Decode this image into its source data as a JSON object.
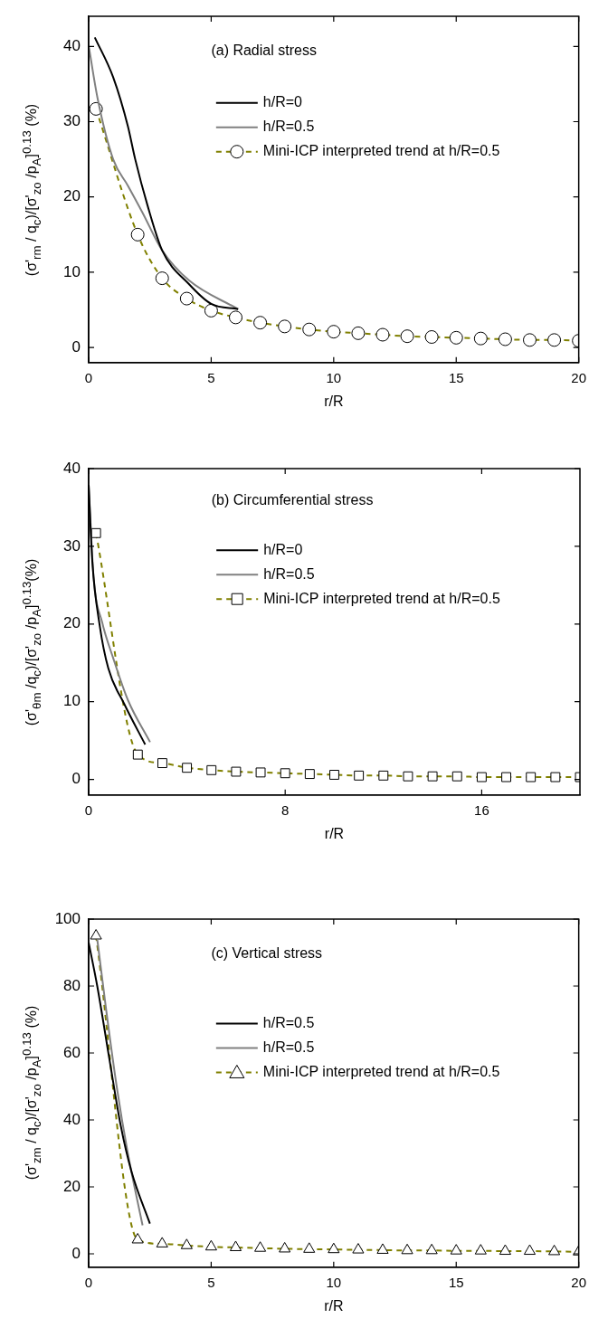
{
  "chart_data": [
    {
      "type": "line",
      "annotations": [
        "(a) Radial stress"
      ],
      "xlabel": "r/R",
      "ylabel": "(σ'$_{rm}$ / q$_{c}$)/[σ'$_{zo}$ /p$_{A}$]$^{0.13}$ (%)",
      "xlim": [
        0,
        20
      ],
      "ylim": [
        -2,
        44
      ],
      "xticks": [
        0,
        5,
        10,
        15,
        20
      ],
      "yticks": [
        0,
        10,
        20,
        30,
        40
      ],
      "grid": false,
      "legend": "top right",
      "series": [
        {
          "name": "h/R=0",
          "color": "#000000",
          "marker": "none",
          "line_style": "solid",
          "x": [
            0.25,
            1.0,
            1.6,
            1.9,
            2.4,
            3.0,
            4.1,
            5.0,
            6.1
          ],
          "values": [
            41.2,
            35.9,
            29.4,
            25.0,
            18.9,
            12.9,
            8.4,
            5.8,
            5.1
          ]
        },
        {
          "name": "h/R=0.5",
          "color": "#808080",
          "marker": "none",
          "line_style": "solid",
          "x": [
            0,
            0.37,
            1.0,
            1.6,
            2.2,
            3.0,
            4.1,
            6.1
          ],
          "values": [
            40.1,
            33,
            25,
            21.5,
            17.9,
            12.9,
            8.9,
            5.1
          ]
        },
        {
          "name": "Mini-ICP interpreted trend at h/R=0.5",
          "color": "#808000",
          "marker": "circle",
          "line_style": "dashed",
          "x": [
            0.3,
            2,
            3,
            4,
            5,
            6,
            7,
            8,
            9,
            10,
            11,
            12,
            13,
            14,
            15,
            16,
            17,
            18,
            19,
            20
          ],
          "values": [
            31.7,
            15,
            9.2,
            6.5,
            4.9,
            4.0,
            3.3,
            2.8,
            2.4,
            2.1,
            1.9,
            1.7,
            1.5,
            1.4,
            1.3,
            1.2,
            1.1,
            1.0,
            1.0,
            0.9
          ]
        }
      ]
    },
    {
      "type": "line",
      "annotations": [
        "(b) Circumferential stress"
      ],
      "xlabel": "r/R",
      "ylabel": "(σ'$_{θm}$ /q$_{c}$)/[σ'$_{zo}$ /p$_{A}$]$^{0.13}$(%)",
      "xlim": [
        0,
        20
      ],
      "ylim": [
        -2,
        40
      ],
      "xticks": [
        0,
        8,
        16
      ],
      "yticks": [
        0,
        10,
        20,
        30,
        40
      ],
      "grid": false,
      "legend": "top right",
      "series": [
        {
          "name": "h/R=0",
          "color": "#000000",
          "marker": "none",
          "line_style": "solid",
          "x": [
            0,
            0.15,
            0.45,
            0.8,
            1.45,
            2.3
          ],
          "values": [
            37.9,
            28,
            19.8,
            14.3,
            9.7,
            4.5
          ]
        },
        {
          "name": "h/R=0.5",
          "color": "#808080",
          "marker": "none",
          "line_style": "solid",
          "x": [
            0,
            0.2,
            0.55,
            1.0,
            1.6,
            2.5
          ],
          "values": [
            37.9,
            26,
            20.2,
            15.6,
            10.2,
            4.8
          ]
        },
        {
          "name": "Mini-ICP interpreted trend at h/R=0.5",
          "color": "#808000",
          "marker": "square",
          "line_style": "dashed",
          "x": [
            0.3,
            2,
            3,
            4,
            5,
            6,
            7,
            8,
            9,
            10,
            11,
            12,
            13,
            14,
            15,
            16,
            17,
            18,
            19,
            20
          ],
          "values": [
            31.7,
            3.2,
            2.1,
            1.5,
            1.2,
            1.0,
            0.9,
            0.8,
            0.7,
            0.6,
            0.5,
            0.5,
            0.4,
            0.4,
            0.4,
            0.3,
            0.3,
            0.3,
            0.3,
            0.3
          ]
        }
      ]
    },
    {
      "type": "line",
      "annotations": [
        "(c) Vertical stress"
      ],
      "xlabel": "r/R",
      "ylabel": "(σ'$_{zm}$ / q$_{c}$)/[σ'$_{zo}$ /p$_{A}$]$^{0.13}$ (%)",
      "xlim": [
        0,
        20
      ],
      "ylim": [
        -4,
        100
      ],
      "xticks": [
        0,
        5,
        10,
        15,
        20
      ],
      "yticks": [
        0,
        20,
        40,
        60,
        80,
        100
      ],
      "grid": false,
      "legend": "top right",
      "series": [
        {
          "name": "h/R=0.5",
          "color": "#000000",
          "marker": "none",
          "line_style": "solid",
          "x": [
            0,
            0.35,
            0.85,
            1.3,
            1.75,
            2.5
          ],
          "values": [
            93,
            80,
            58,
            38.6,
            24.5,
            9
          ]
        },
        {
          "name": "h/R=0.5",
          "color": "#808080",
          "marker": "none",
          "line_style": "solid",
          "x": [
            0.35,
            0.7,
            1.15,
            1.6,
            2.2
          ],
          "values": [
            94,
            73.7,
            49.7,
            30,
            8.5
          ]
        },
        {
          "name": "Mini-ICP interpreted trend at h/R=0.5",
          "color": "#808000",
          "marker": "triangle",
          "line_style": "dashed",
          "x": [
            0.3,
            2,
            3,
            4,
            5,
            6,
            7,
            8,
            9,
            10,
            11,
            12,
            13,
            14,
            15,
            16,
            17,
            18,
            19,
            20
          ],
          "values": [
            95,
            4.2,
            3.0,
            2.5,
            2.1,
            1.9,
            1.7,
            1.5,
            1.4,
            1.3,
            1.2,
            1.1,
            1.0,
            1.0,
            0.9,
            0.9,
            0.8,
            0.8,
            0.7,
            0.6
          ]
        }
      ]
    }
  ]
}
